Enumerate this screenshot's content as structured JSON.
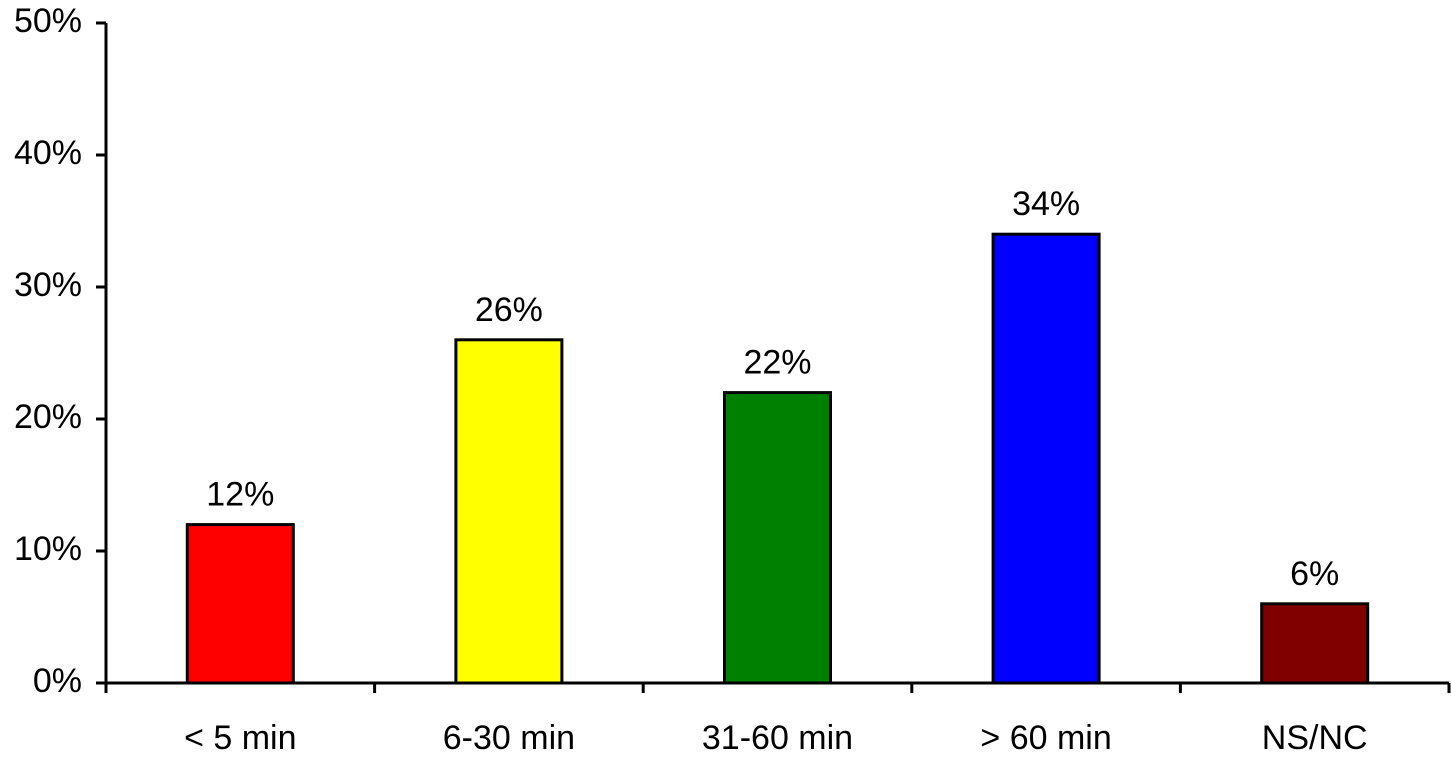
{
  "chart_data": {
    "type": "bar",
    "categories": [
      "< 5 min",
      "6-30 min",
      "31-60 min",
      "> 60 min",
      "NS/NC"
    ],
    "values": [
      12,
      26,
      22,
      34,
      6
    ],
    "value_labels": [
      "12%",
      "26%",
      "22%",
      "34%",
      "6%"
    ],
    "colors": [
      "#ff0000",
      "#ffff00",
      "#008000",
      "#0000ff",
      "#800000"
    ],
    "ylim": [
      0,
      50
    ],
    "yticks": [
      {
        "value": 0,
        "label": "0%"
      },
      {
        "value": 10,
        "label": "10%"
      },
      {
        "value": 20,
        "label": "20%"
      },
      {
        "value": 30,
        "label": "30%"
      },
      {
        "value": 40,
        "label": "40%"
      },
      {
        "value": 50,
        "label": "50%"
      }
    ],
    "grid": false
  }
}
